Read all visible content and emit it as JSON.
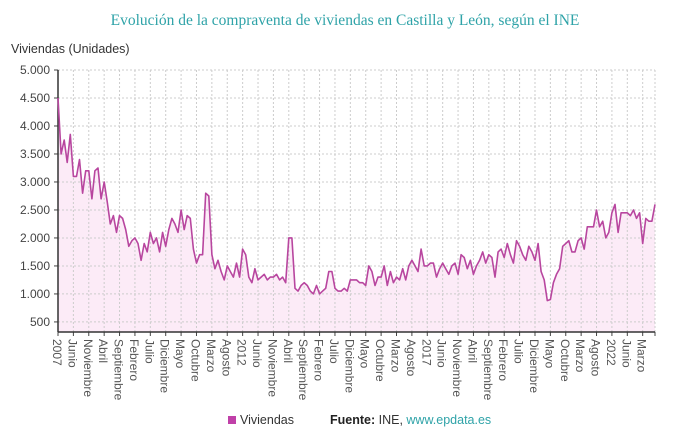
{
  "chart_data": {
    "type": "area",
    "title": "Evolución de la compraventa de viviendas en Castilla y León, según el INE",
    "ylabel": "Viviendas (Unidades)",
    "xlabel": "",
    "ylim": [
      320,
      5000
    ],
    "yticks": [
      500,
      1000,
      1500,
      2000,
      2500,
      3000,
      3500,
      4000,
      4500,
      5000
    ],
    "ytick_labels": [
      "500",
      "1.000",
      "1.500",
      "2.000",
      "2.500",
      "3.000",
      "3.500",
      "4.000",
      "4.500",
      "5.000"
    ],
    "x_start": "2007-01",
    "x_end": "2023-03",
    "xtick_labels": [
      "2007",
      "Junio",
      "Noviembre",
      "Abril",
      "Septiembre",
      "Febrero",
      "Julio",
      "Diciembre",
      "Mayo",
      "Octubre",
      "Marzo",
      "Agosto",
      "2012",
      "Junio",
      "Noviembre",
      "Abril",
      "Septiembre",
      "Febrero",
      "Julio",
      "Diciembre",
      "Mayo",
      "Octubre",
      "Marzo",
      "Agosto",
      "2017",
      "Junio",
      "Noviembre",
      "Abril",
      "Septiembre",
      "Febrero",
      "Julio",
      "Diciembre",
      "Mayo",
      "Octubre",
      "Marzo",
      "Agosto",
      "2022",
      "Junio",
      "Marzo"
    ],
    "grid": true,
    "legend_position": "bottom",
    "series": [
      {
        "name": "Viviendas",
        "color": "#b8469f",
        "fill": "#fcebf7",
        "values": [
          4500,
          3500,
          3750,
          3350,
          3850,
          3100,
          3100,
          3400,
          2800,
          3200,
          3200,
          2700,
          3200,
          3250,
          2700,
          3000,
          2650,
          2250,
          2400,
          2100,
          2400,
          2350,
          2150,
          1850,
          1950,
          2000,
          1900,
          1600,
          1900,
          1750,
          2100,
          1900,
          2000,
          1750,
          2100,
          1850,
          2150,
          2350,
          2250,
          2100,
          2500,
          2150,
          2400,
          2350,
          1800,
          1550,
          1700,
          1700,
          2800,
          2750,
          1700,
          1450,
          1600,
          1400,
          1250,
          1500,
          1400,
          1300,
          1550,
          1300,
          1800,
          1700,
          1300,
          1200,
          1450,
          1250,
          1300,
          1350,
          1250,
          1300,
          1300,
          1350,
          1250,
          1300,
          1200,
          2000,
          2000,
          1100,
          1050,
          1150,
          1200,
          1150,
          1050,
          1000,
          1150,
          1000,
          1050,
          1100,
          1400,
          1400,
          1100,
          1050,
          1050,
          1100,
          1050,
          1250,
          1250,
          1250,
          1200,
          1200,
          1150,
          1500,
          1400,
          1150,
          1300,
          1300,
          1500,
          1150,
          1400,
          1200,
          1300,
          1250,
          1450,
          1250,
          1500,
          1600,
          1500,
          1400,
          1800,
          1500,
          1500,
          1550,
          1550,
          1300,
          1450,
          1550,
          1450,
          1350,
          1500,
          1550,
          1350,
          1700,
          1650,
          1450,
          1600,
          1350,
          1500,
          1600,
          1750,
          1550,
          1700,
          1650,
          1300,
          1750,
          1800,
          1650,
          1900,
          1700,
          1550,
          1950,
          1850,
          1700,
          1600,
          1850,
          1750,
          1600,
          1900,
          1400,
          1250,
          880,
          900,
          1200,
          1350,
          1450,
          1850,
          1900,
          1950,
          1750,
          1750,
          1950,
          2000,
          1800,
          2200,
          2200,
          2200,
          2500,
          2200,
          2300,
          2000,
          2100,
          2450,
          2600,
          2100,
          2450,
          2450,
          2450,
          2400,
          2500,
          2350,
          2450,
          1900,
          2350,
          2300,
          2300,
          2600
        ]
      }
    ]
  },
  "legend": {
    "series_label": "Viviendas"
  },
  "source": {
    "label": "Fuente:",
    "text": "INE,",
    "link": "www.epdata.es"
  }
}
